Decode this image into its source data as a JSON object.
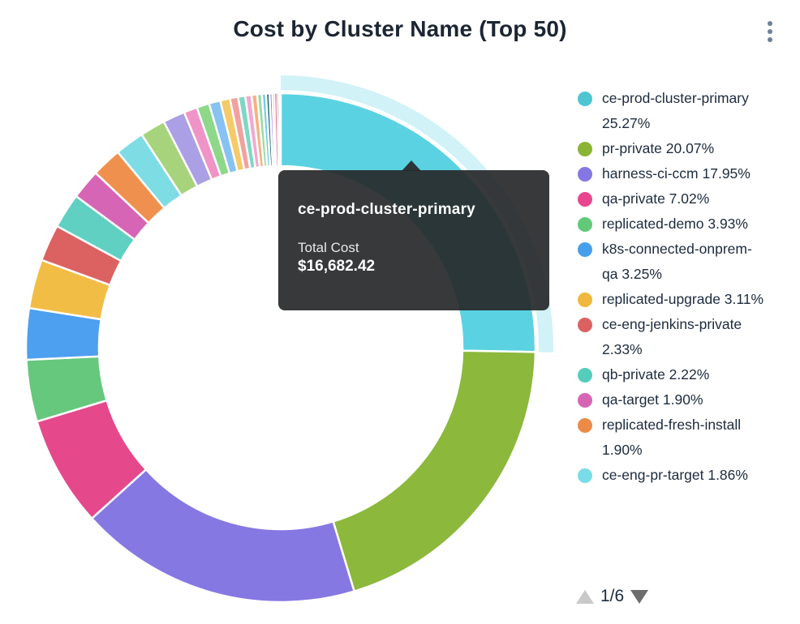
{
  "header": {
    "title": "Cost by Cluster Name (Top 50)"
  },
  "menu": {
    "icon": "kebab-vertical-icon"
  },
  "tooltip": {
    "title": "ce-prod-cluster-primary",
    "label": "Total Cost",
    "value": "$16,682.42"
  },
  "legend": {
    "items": [
      {
        "label": "ce-prod-cluster-primary",
        "pct": "25.27%",
        "color": "#4dc6d2"
      },
      {
        "label": "pr-private",
        "pct": "20.07%",
        "color": "#8ab434"
      },
      {
        "label": "harness-ci-ccm",
        "pct": "17.95%",
        "color": "#8577e3"
      },
      {
        "label": "qa-private",
        "pct": "7.02%",
        "color": "#e8478f"
      },
      {
        "label": "replicated-demo",
        "pct": "3.93%",
        "color": "#62c97a"
      },
      {
        "label": "k8s-connected-onprem-qa",
        "pct": "3.25%",
        "color": "#479fec"
      },
      {
        "label": "replicated-upgrade",
        "pct": "3.11%",
        "color": "#f0b93e"
      },
      {
        "label": "ce-eng-jenkins-private",
        "pct": "2.33%",
        "color": "#dc6262"
      },
      {
        "label": "qb-private",
        "pct": "2.22%",
        "color": "#54cdbd"
      },
      {
        "label": "qa-target",
        "pct": "1.90%",
        "color": "#d765b5"
      },
      {
        "label": "replicated-fresh-install",
        "pct": "1.90%",
        "color": "#ec8b47"
      },
      {
        "label": "ce-eng-pr-target",
        "pct": "1.86%",
        "color": "#7adce8"
      }
    ],
    "pagination": {
      "current": "1/6",
      "up_icon": "up-triangle-icon",
      "down_icon": "down-triangle-icon"
    }
  },
  "chart_data": {
    "type": "pie",
    "subtype": "donut",
    "title": "Cost by Cluster Name (Top 50)",
    "legend_position": "right",
    "start_angle_deg": 0,
    "direction": "clockwise",
    "hover_index": 0,
    "hovered_slice_tooltip": {
      "name": "ce-prod-cluster-primary",
      "metric": "Total Cost",
      "value": "$16,682.42"
    },
    "slices": [
      {
        "label": "ce-prod-cluster-primary",
        "value": 25.27,
        "color": "#5bd2e2",
        "hovered": true
      },
      {
        "label": "pr-private",
        "value": 20.07,
        "color": "#8cb83c"
      },
      {
        "label": "harness-ci-ccm",
        "value": 17.95,
        "color": "#8678e2"
      },
      {
        "label": "qa-private",
        "value": 7.02,
        "color": "#e5498b"
      },
      {
        "label": "replicated-demo",
        "value": 3.93,
        "color": "#65c87d"
      },
      {
        "label": "k8s-connected-onprem-qa",
        "value": 3.25,
        "color": "#4d9ff0"
      },
      {
        "label": "replicated-upgrade",
        "value": 3.11,
        "color": "#f2bd45"
      },
      {
        "label": "ce-eng-jenkins-private",
        "value": 2.33,
        "color": "#dc6262"
      },
      {
        "label": "qb-private",
        "value": 2.22,
        "color": "#5fd0c1"
      },
      {
        "label": "qa-target",
        "value": 1.9,
        "color": "#d765b5"
      },
      {
        "label": "replicated-fresh-install",
        "value": 1.9,
        "color": "#f0904e"
      },
      {
        "label": "ce-eng-pr-target",
        "value": 1.86,
        "color": "#7edce4"
      },
      {
        "label": "",
        "value": 1.6,
        "color": "#a7d37c"
      },
      {
        "label": "",
        "value": 1.4,
        "color": "#ab9fe5"
      },
      {
        "label": "",
        "value": 0.85,
        "color": "#f093c6"
      },
      {
        "label": "",
        "value": 0.8,
        "color": "#8ed889"
      },
      {
        "label": "",
        "value": 0.72,
        "color": "#87c2f2"
      },
      {
        "label": "",
        "value": 0.62,
        "color": "#f6ca68"
      },
      {
        "label": "",
        "value": 0.52,
        "color": "#f0a2a0"
      },
      {
        "label": "",
        "value": 0.45,
        "color": "#7ed7c3"
      },
      {
        "label": "",
        "value": 0.4,
        "color": "#f2a9cf"
      },
      {
        "label": "",
        "value": 0.35,
        "color": "#f5b27e"
      },
      {
        "label": "",
        "value": 0.3,
        "color": "#9cdba4"
      },
      {
        "label": "",
        "value": 0.26,
        "color": "#74cbe8"
      },
      {
        "label": "",
        "value": 0.22,
        "color": "#2a6e74"
      },
      {
        "label": "",
        "value": 0.18,
        "color": "#8a7ae0"
      },
      {
        "label": "",
        "value": 0.15,
        "color": "#e8906a"
      },
      {
        "label": "",
        "value": 0.12,
        "color": "#d85f88"
      },
      {
        "label": "",
        "value": 0.09,
        "color": "#56a86a"
      },
      {
        "label": "",
        "value": 0.07,
        "color": "#8d6fd1"
      },
      {
        "label": "",
        "value": 0.05,
        "color": "#35606e"
      },
      {
        "label": "",
        "value": 0.04,
        "color": "#7c4d6e"
      }
    ]
  }
}
